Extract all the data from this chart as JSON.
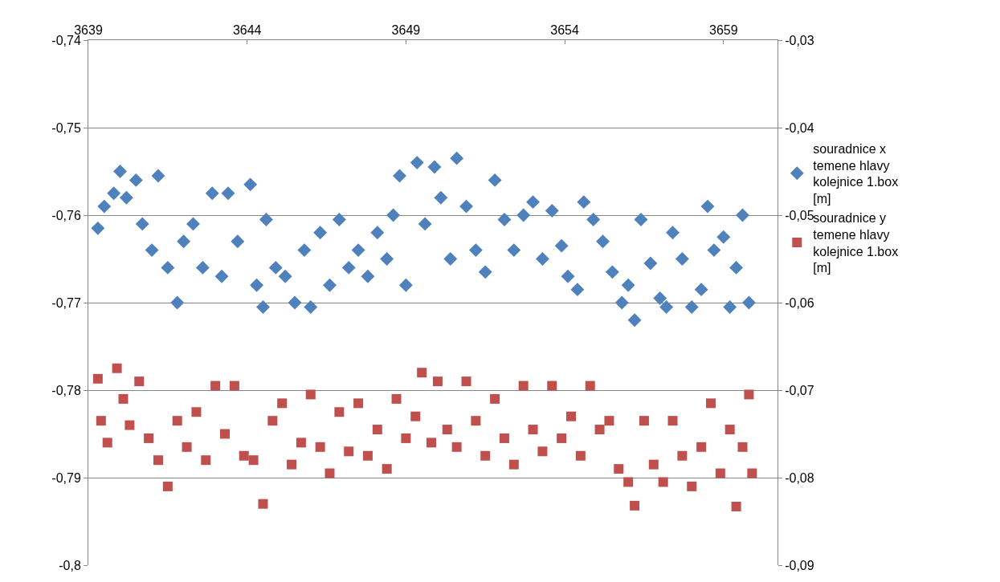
{
  "chart_data": {
    "type": "scatter",
    "xlim": [
      3639,
      3660.7
    ],
    "xticks": [
      3639,
      3644,
      3649,
      3654,
      3659
    ],
    "ylim": [
      -0.8,
      -0.74
    ],
    "yticks": [
      {
        "value": -0.8,
        "label": "-0,8"
      },
      {
        "value": -0.79,
        "label": "-0,79"
      },
      {
        "value": -0.78,
        "label": "-0,78"
      },
      {
        "value": -0.77,
        "label": "-0,77"
      },
      {
        "value": -0.76,
        "label": "-0,76"
      },
      {
        "value": -0.75,
        "label": "-0,75"
      },
      {
        "value": -0.74,
        "label": "-0,74"
      }
    ],
    "y2lim": [
      -0.09,
      -0.03
    ],
    "y2ticks": [
      {
        "value": -0.09,
        "label": "-0,09"
      },
      {
        "value": -0.08,
        "label": "-0,08"
      },
      {
        "value": -0.07,
        "label": "-0,07"
      },
      {
        "value": -0.06,
        "label": "-0,06"
      },
      {
        "value": -0.05,
        "label": "-0,05"
      },
      {
        "value": -0.04,
        "label": "-0,04"
      },
      {
        "value": -0.03,
        "label": "-0,03"
      }
    ],
    "grid": "y",
    "legend": "right",
    "series": [
      {
        "name": "souradnice x temene hlavy kolejnice 1.box [m]",
        "color": "#4f81bd",
        "marker": "diamond",
        "x": [
          3639.3,
          3639.5,
          3639.8,
          3640.0,
          3640.2,
          3640.5,
          3640.7,
          3641.0,
          3641.2,
          3641.5,
          3641.8,
          3642.0,
          3642.3,
          3642.6,
          3642.9,
          3643.2,
          3643.4,
          3643.7,
          3644.1,
          3644.3,
          3644.5,
          3644.6,
          3644.9,
          3645.2,
          3645.5,
          3645.8,
          3646.0,
          3646.3,
          3646.6,
          3646.9,
          3647.2,
          3647.5,
          3647.8,
          3648.1,
          3648.4,
          3648.6,
          3648.8,
          3649.0,
          3649.35,
          3649.6,
          3649.9,
          3650.1,
          3650.4,
          3650.6,
          3650.9,
          3651.2,
          3651.5,
          3651.8,
          3652.1,
          3652.4,
          3652.7,
          3653.0,
          3653.3,
          3653.6,
          3653.9,
          3654.1,
          3654.4,
          3654.6,
          3654.9,
          3655.2,
          3655.5,
          3655.8,
          3656.0,
          3656.2,
          3656.4,
          3656.7,
          3657.0,
          3657.2,
          3657.4,
          3657.7,
          3658.0,
          3658.3,
          3658.5,
          3658.7,
          3659.0,
          3659.2,
          3659.4,
          3659.6,
          3659.8
        ],
        "values": [
          -0.7615,
          -0.759,
          -0.7575,
          -0.755,
          -0.758,
          -0.756,
          -0.761,
          -0.764,
          -0.7555,
          -0.766,
          -0.77,
          -0.763,
          -0.761,
          -0.766,
          -0.7575,
          -0.767,
          -0.7575,
          -0.763,
          -0.7565,
          -0.768,
          -0.7705,
          -0.7605,
          -0.766,
          -0.767,
          -0.77,
          -0.764,
          -0.7705,
          -0.762,
          -0.768,
          -0.7605,
          -0.766,
          -0.764,
          -0.767,
          -0.762,
          -0.765,
          -0.76,
          -0.7555,
          -0.768,
          -0.754,
          -0.761,
          -0.7545,
          -0.758,
          -0.765,
          -0.7535,
          -0.759,
          -0.764,
          -0.7665,
          -0.756,
          -0.7605,
          -0.764,
          -0.76,
          -0.7585,
          -0.765,
          -0.7595,
          -0.7635,
          -0.767,
          -0.7685,
          -0.7585,
          -0.7605,
          -0.763,
          -0.7665,
          -0.77,
          -0.768,
          -0.772,
          -0.7605,
          -0.7655,
          -0.7695,
          -0.7705,
          -0.762,
          -0.765,
          -0.7705,
          -0.7685,
          -0.759,
          -0.764,
          -0.7625,
          -0.7705,
          -0.766,
          -0.76,
          -0.77
        ]
      },
      {
        "name": "souradnice y temene hlavy kolejnice 1.box [m]",
        "color": "#c0504d",
        "marker": "square",
        "axis": "y2",
        "x": [
          3639.3,
          3639.4,
          3639.6,
          3639.9,
          3640.1,
          3640.3,
          3640.6,
          3640.9,
          3641.2,
          3641.5,
          3641.8,
          3642.1,
          3642.4,
          3642.7,
          3643.0,
          3643.3,
          3643.6,
          3643.9,
          3644.2,
          3644.5,
          3644.8,
          3645.1,
          3645.4,
          3645.7,
          3646.0,
          3646.3,
          3646.6,
          3646.9,
          3647.2,
          3647.5,
          3647.8,
          3648.1,
          3648.4,
          3648.7,
          3649.0,
          3649.3,
          3649.5,
          3649.8,
          3650.0,
          3650.3,
          3650.6,
          3650.9,
          3651.2,
          3651.5,
          3651.8,
          3652.1,
          3652.4,
          3652.7,
          3653.0,
          3653.3,
          3653.6,
          3653.9,
          3654.2,
          3654.5,
          3654.8,
          3655.1,
          3655.4,
          3655.7,
          3656.0,
          3656.2,
          3656.5,
          3656.8,
          3657.1,
          3657.4,
          3657.7,
          3658.0,
          3658.3,
          3658.6,
          3658.9,
          3659.2,
          3659.4,
          3659.6,
          3659.8,
          3659.9
        ],
        "values": [
          -0.0687,
          -0.0735,
          -0.076,
          -0.0675,
          -0.071,
          -0.074,
          -0.069,
          -0.0755,
          -0.078,
          -0.081,
          -0.0735,
          -0.0765,
          -0.0725,
          -0.078,
          -0.0695,
          -0.075,
          -0.0695,
          -0.0775,
          -0.078,
          -0.083,
          -0.0735,
          -0.0715,
          -0.0785,
          -0.076,
          -0.0705,
          -0.0765,
          -0.0795,
          -0.0725,
          -0.077,
          -0.0715,
          -0.0775,
          -0.0745,
          -0.079,
          -0.071,
          -0.0755,
          -0.073,
          -0.068,
          -0.076,
          -0.069,
          -0.0745,
          -0.0765,
          -0.069,
          -0.0735,
          -0.0775,
          -0.071,
          -0.0755,
          -0.0785,
          -0.0695,
          -0.0745,
          -0.077,
          -0.0695,
          -0.0755,
          -0.073,
          -0.0775,
          -0.0695,
          -0.0745,
          -0.0735,
          -0.079,
          -0.0805,
          -0.0832,
          -0.0735,
          -0.0785,
          -0.0805,
          -0.0735,
          -0.0775,
          -0.081,
          -0.0765,
          -0.0715,
          -0.0795,
          -0.0745,
          -0.0833,
          -0.0765,
          -0.0705,
          -0.0795
        ]
      }
    ]
  }
}
